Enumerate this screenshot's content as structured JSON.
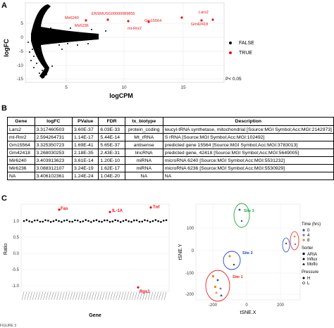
{
  "panels": {
    "a": "A",
    "b": "B",
    "c": "C"
  },
  "panel_a": {
    "ylabel": "logFC",
    "xlabel": "logCPM",
    "pvalue_note": "P< 0.05",
    "legend": [
      {
        "label": "FALSE",
        "color": "#000000"
      },
      {
        "label": "TRUE",
        "color": "#ee1111"
      }
    ],
    "gene_labels": [
      "Mir6240",
      "ENSMUSG00000089855",
      "Lars2",
      "Mir6236",
      "mt-Rnr2",
      "Gm15564",
      "Gm42418"
    ],
    "yticks": [
      "5",
      "0",
      "-5",
      "-10",
      "-15"
    ],
    "xticks": [
      "5",
      "10",
      "15"
    ]
  },
  "table_b": {
    "headers": [
      "Gene",
      "logFC",
      "PValue",
      "FDR",
      "tx_biotype",
      "Description"
    ],
    "rows": [
      [
        "Lars2",
        "3.317460503",
        "3.60E-37",
        "6.03E-33",
        "protein_coding",
        "leucyl-tRNA synthetase, mitochondrial [Source:MGI Symbol;Acc:MGI:2142973]"
      ],
      [
        "mt-Rnr2",
        "2.594264731",
        "1.14E-17",
        "5.44E-14",
        "Mt_rRNA",
        "S rRNA [Source:MGI Symbol;Acc:MGI:102492]"
      ],
      [
        "Gm15564",
        "3.325350723",
        "1.69E-41",
        "5.65E-37",
        "antisense",
        "predicted gene 15564 [Source:MGI Symbol;Acc:MGI:3783013]"
      ],
      [
        "Gm42418",
        "3.268030253",
        "2.18E-35",
        "2.43E-31",
        "lincRNA",
        "predicted gene, 42418 [Source:MGI Symbol;Acc:MGI:5649005]"
      ],
      [
        "Mir6240",
        "3.403913623",
        "3.61E-14",
        "1.20E-10",
        "miRNA",
        "microRNA 6240 [Source:MGI Symbol;Acc:MGI:5531232]"
      ],
      [
        "Mir6236",
        "3.088312107",
        "3.24E-19",
        "1.62E-17",
        "miRNA",
        "microRNA 6236 [Source:MGI Symbol;Acc:MGI:5530929]"
      ],
      [
        "NA",
        "3.406102361",
        "1.24E-24",
        "1.04E-20",
        "NA",
        "NA"
      ]
    ]
  },
  "panel_c_left": {
    "ylabel": "Ratio",
    "xlabel": "Gene",
    "yticks": [
      "1.0",
      "0.5",
      "0.0",
      "-0.5",
      "-1.0"
    ],
    "highlights": [
      {
        "label": "Fas",
        "ratio": 1.35
      },
      {
        "label": "IL-1A",
        "ratio": 1.28
      },
      {
        "label": "Tnf",
        "ratio": 1.42
      },
      {
        "label": "Rgs1",
        "ratio": -1.05
      }
    ]
  },
  "panel_c_right": {
    "ylabel": "tSNE.Y",
    "xlabel": "tSNE.X",
    "xticks": [
      "-200",
      "-100",
      "0",
      "100",
      "200",
      "300"
    ],
    "yticks": [
      "100",
      "0",
      "-100",
      "-200"
    ],
    "clusters": [
      {
        "label": "Site 3",
        "color": "#22aa44"
      },
      {
        "label": "Site 2",
        "color": "#2244cc"
      },
      {
        "label": "Site 1",
        "color": "#ee2222"
      }
    ],
    "legend_time_title": "Time (hrs)",
    "legend_time": [
      {
        "label": "0",
        "color": "#444488"
      },
      {
        "label": "4",
        "color": "#7777aa"
      },
      {
        "label": "8",
        "color": "#ee8822"
      }
    ],
    "legend_sorter_title": "Sorter",
    "legend_sorter": [
      "ARIA",
      "Influx",
      "Moflo"
    ],
    "legend_pressure_title": "Pressure",
    "legend_pressure": [
      "H",
      "L"
    ]
  },
  "caption": "FIGURE 3"
}
